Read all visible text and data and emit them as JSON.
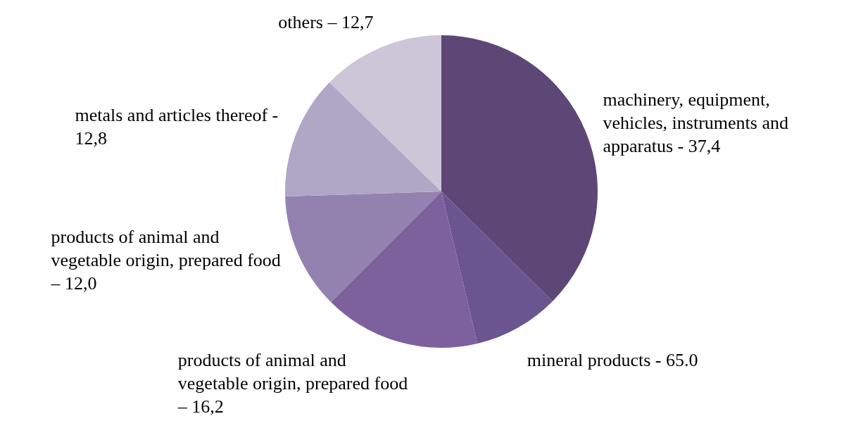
{
  "chart_data": {
    "type": "pie",
    "categories": [
      "machinery, equipment, vehicles, instruments and apparatus - 37,4",
      "mineral products - 65.0",
      "products of animal and vegetable origin, prepared food – 16,2",
      "products of animal and vegetable origin, prepared food – 12,0",
      "metals and articles thereof - 12,8",
      "others – 12,7"
    ],
    "values": [
      37.4,
      8.9,
      16.2,
      12.0,
      12.8,
      12.7
    ],
    "colors": [
      "#5d4776",
      "#6b5590",
      "#7d619c",
      "#9382b0",
      "#b0a6c6",
      "#cdc6d9"
    ],
    "legend": false
  }
}
